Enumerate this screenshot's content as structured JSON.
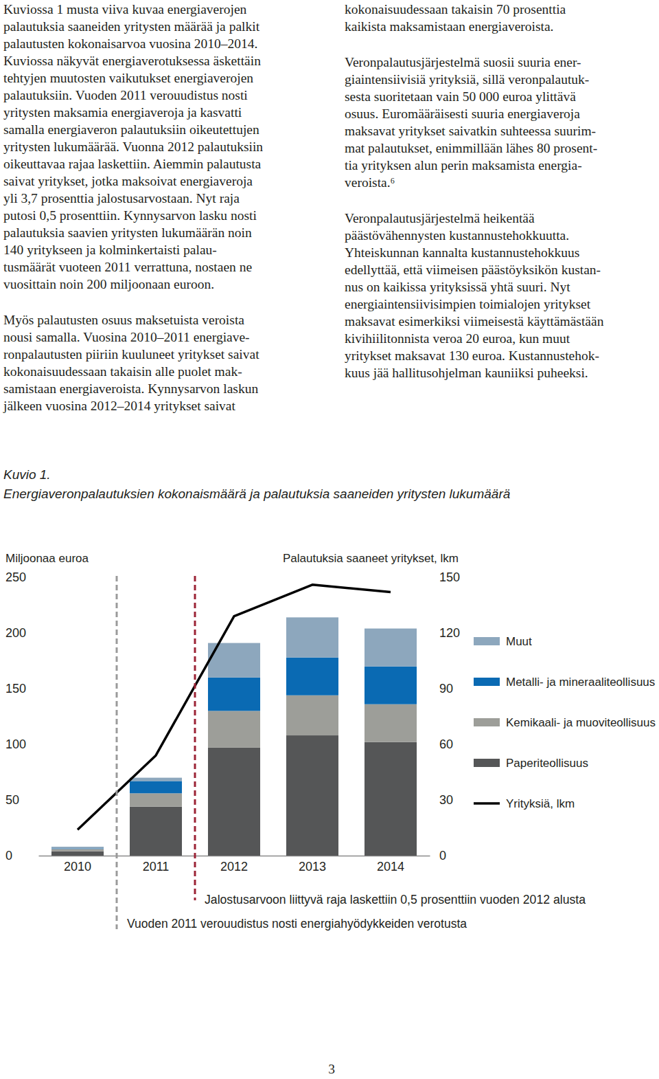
{
  "text": {
    "left_column": [
      [
        "Kuviossa 1 musta viiva kuvaa energiaverojen",
        "palautuksia saaneiden yritysten määrää ja palkit",
        "palautusten kokonaisarvoa vuosina 2010–2014.",
        "Kuviossa näkyvät energiaverotuksessa äskettäin",
        "tehtyjen muutosten vaikutukset energiaverojen",
        "palautuksiin. Vuoden 2011 verouudistus nosti",
        "yritysten maksamia energiaveroja ja kasvatti",
        "samalla energiaveron palautuksiin oikeutettujen",
        "yritysten lukumäärää. Vuonna 2012 palautuksiin",
        "oikeuttavaa rajaa laskettiin. Aiemmin palautusta",
        "saivat yritykset, jotka maksoivat energiaveroja",
        "yli 3,7 prosenttia jalostusarvostaan. Nyt raja",
        "putosi 0,5 prosenttiin. Kynnysarvon lasku nosti",
        "palautuksia saavien yritysten lukumäärän noin",
        "140 yritykseen ja kolminkertaisti palau-",
        "tusmäärät vuoteen 2011 verrattuna, nostaen ne",
        "vuosittain noin 200 miljoonaan euroon."
      ],
      [
        "Myös palautusten osuus maksetuista veroista",
        "nousi samalla. Vuosina 2010–2011 energiave-",
        "ronpalautusten piiriin kuuluneet yritykset saivat",
        "kokonaisuudessaan takaisin alle puolet mak-",
        "samistaan energiaveroista. Kynnysarvon laskun",
        "jälkeen vuosina 2012–2014  yritykset saivat"
      ]
    ],
    "right_column": [
      [
        "kokonaisuudessaan takaisin 70 prosenttia",
        "kaikista maksamistaan energiaveroista."
      ],
      [
        "Veronpalautusjärjestelmä suosii suuria ener-",
        "giaintensiivisiä yrityksiä, sillä veronpalautuk-",
        "sesta suoritetaan vain 50 000 euroa ylittävä",
        "osuus. Euromääräisesti suuria energiaveroja",
        "maksavat yritykset saivatkin suhteessa suurim-",
        "mat palautukset, enimmillään lähes 80 prosent-",
        "tia yrityksen alun perin maksamista energia-",
        "veroista.⁶"
      ],
      [
        "Veronpalautusjärjestelmä heikentää",
        "päästövähennysten kustannustehokkuutta.",
        "Yhteiskunnan kannalta kustannustehokkuus",
        "edellyttää, että viimeisen päästöyksikön kustan-",
        "nus on kaikissa yrityksissä yhtä suuri. Nyt",
        "energiaintensiivisimpien toimialojen yritykset",
        "maksavat esimerkiksi viimeisestä käyttämästään",
        "kivihiilitonnista veroa 20 euroa, kun muut",
        "yritykset maksavat 130 euroa. Kustannustehok-",
        "kuus jää hallitusohjelman kauniiksi puheeksi."
      ]
    ],
    "page_number": "3"
  },
  "chart_data": {
    "type": "bar",
    "stacked": true,
    "title": "Kuvio 1.",
    "subtitle": "Energiaveronpalautuksien kokonaismäärä ja palautuksia saaneiden yritysten lukumäärä",
    "y_label": "Miljoonaa euroa",
    "y2_label": "Palautuksia saaneet yritykset, lkm",
    "categories": [
      "2010",
      "2011",
      "2012",
      "2013",
      "2014"
    ],
    "ylim": [
      0,
      250
    ],
    "yticks": [
      0,
      50,
      100,
      150,
      200,
      250
    ],
    "y2lim": [
      0,
      150
    ],
    "y2ticks": [
      0,
      30,
      60,
      90,
      120,
      150
    ],
    "legend": "right",
    "series": [
      {
        "name": "Paperiteollisuus",
        "color": "#555657",
        "values": [
          4,
          44,
          97,
          108,
          102
        ]
      },
      {
        "name": "Kemikaali- ja muoviteollisuus",
        "color": "#9d9e99",
        "values": [
          2,
          12,
          33,
          36,
          34
        ]
      },
      {
        "name": "Metalli- ja mineraaliteollisuus",
        "color": "#0a6ab3",
        "values": [
          0.5,
          11,
          30,
          34,
          34
        ]
      },
      {
        "name": "Muut",
        "color": "#8da7bd",
        "values": [
          1.5,
          3,
          31,
          36,
          34
        ]
      },
      {
        "name": "Yrityksiä, lkm",
        "color": "#000000",
        "type": "line",
        "axis": "y2",
        "values": [
          14,
          54,
          129,
          146,
          142
        ]
      }
    ],
    "annotations": [
      "Jalostusarvoon liittyvä raja laskettiin 0,5 prosenttiin vuoden 2012 alusta",
      "Vuoden 2011 verouudistus nosti energiahyödykkeiden verotusta"
    ]
  }
}
